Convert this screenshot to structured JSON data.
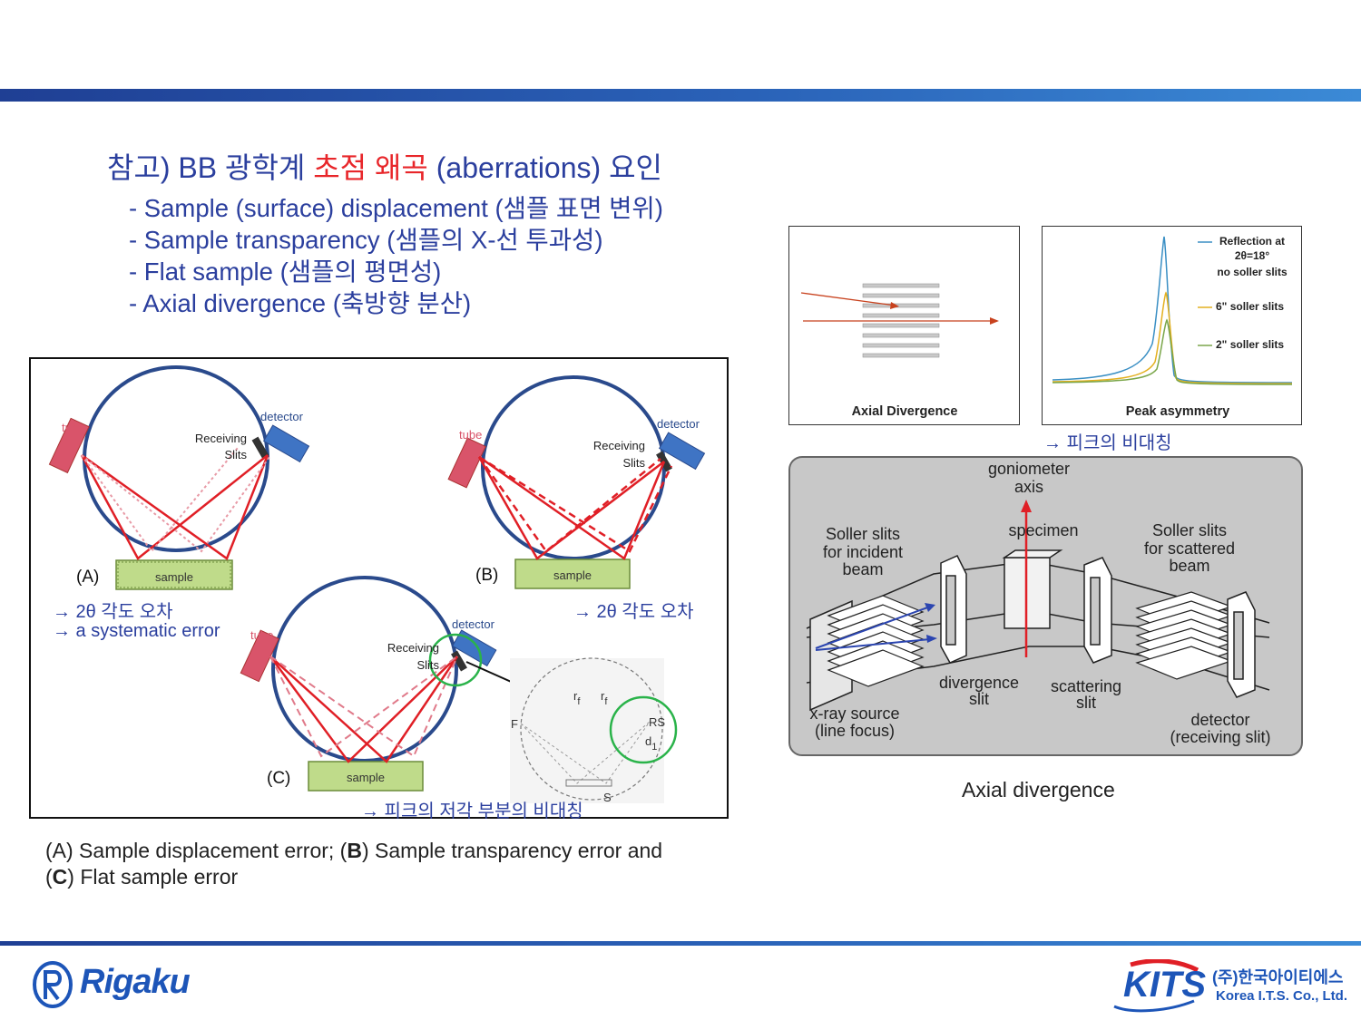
{
  "title": {
    "prefix": "참고) BB 광학계 ",
    "red": "초점 왜곡",
    "suffix": " (aberrations) 요인"
  },
  "bullets": [
    "- Sample (surface) displacement (샘플 표면 변위)",
    "- Sample transparency (샘플의 X-선 투과성)",
    "- Flat sample (샘플의 평면성)",
    "- Axial divergence (축방향 분산)"
  ],
  "diagram_left": {
    "tube": "tube",
    "detector": "detector",
    "receiving": "Receiving",
    "slits": "Slits",
    "sample": "sample",
    "label_a": "(A)",
    "label_b": "(B)",
    "label_c": "(C)",
    "note_a1": "→ 2θ 각도 오차",
    "note_a2": "→ a systematic error",
    "note_b": "→ 2θ 각도 오차",
    "note_c": "→ 피크의 저각 부분의 비대칭",
    "inset_f": "F",
    "inset_rs": "RS",
    "inset_rf": "r",
    "inset_rf_sub": "f",
    "inset_d": "d",
    "inset_d_sub": "1",
    "inset_s": "S"
  },
  "caption": {
    "a": "(A)",
    "a_text": " Sample displacement error; (",
    "b": "B",
    "b_text": ") Sample transparency error and",
    "c_open": "(",
    "c": "C",
    "c_text": ") Flat sample error"
  },
  "axial_panel": {
    "label": "Axial Divergence"
  },
  "peak_panel": {
    "label": "Peak asymmetry",
    "legend1a": "Reflection at",
    "legend1b": "2θ=18°",
    "legend1c": "no soller slits",
    "legend2": "6\" soller slits",
    "legend3": "2\" soller slits",
    "colors": {
      "blue": "#3a8fc4",
      "yellow": "#e3b020",
      "green": "#7aa64a"
    }
  },
  "peak_note": "→ 피크의 비대칭",
  "gonio": {
    "goniometer": "goniometer",
    "axis": "axis",
    "specimen": "specimen",
    "soller_in1": "Soller slits",
    "soller_in2": "for incident",
    "soller_in3": "beam",
    "soller_sc1": "Soller slits",
    "soller_sc2": "for scattered",
    "soller_sc3": "beam",
    "div1": "divergence",
    "div2": "slit",
    "scat1": "scattering",
    "scat2": "slit",
    "src1": "x-ray source",
    "src2": "(line focus)",
    "det1": "detector",
    "det2": "(receiving slit)"
  },
  "axial_caption": "Axial divergence",
  "logo_left": "Rigaku",
  "logo_right": {
    "mark": "KITS",
    "kr": "(주)한국아이티에스",
    "en": "Korea I.T.S. Co., Ltd."
  },
  "accent": {
    "blue": "#2b3f9e",
    "red": "#e8262a",
    "circle": "#2a4a8c"
  }
}
